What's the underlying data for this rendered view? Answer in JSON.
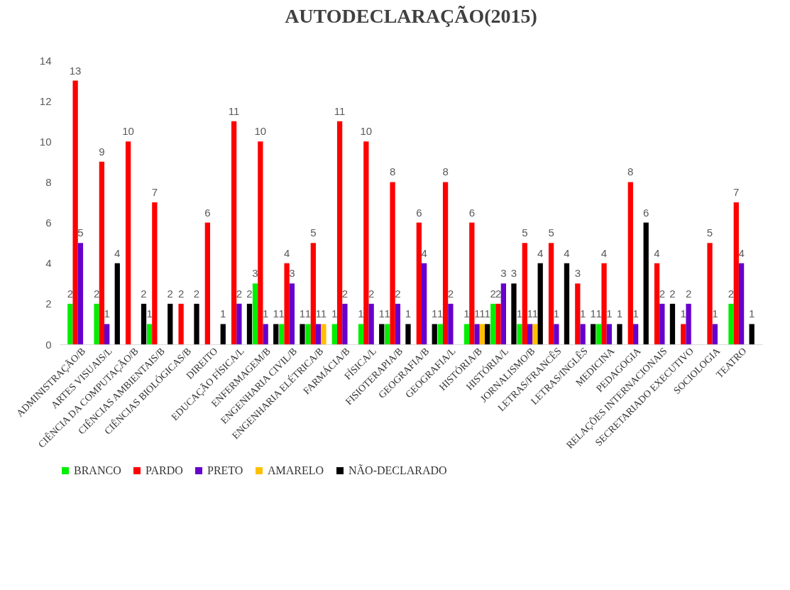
{
  "chart_data": {
    "type": "bar",
    "title": "AUTODECLARAÇÃO(2015)",
    "categories": [
      "ADMINISTRAÇÃO/B",
      "ARTES VISUAIS/L",
      "CIÊNCIA DA COMPUTAÇÃO/B",
      "CIÊNCIAS AMBIENTAIS/B",
      "CIÊNCIAS BIOLÓGICAS/B",
      "DIREITO",
      "EDUCAÇÃO FÍSICA/L",
      "ENFERMAGEM/B",
      "ENGENHARIA CIVIL/B",
      "ENGENHARIA ELÉTRICA/B",
      "FARMÁCIA/B",
      "FÍSICA/L",
      "FISIOTERAPIA/B",
      "GEOGRAFIA/B",
      "GEOGRAFIA/L",
      "HISTÓRIA/B",
      "HISTÓRIA/L",
      "JORNALISMO/B",
      "LETRAS/FRANCÊS",
      "LETRAS/INGLÊS",
      "MEDICINA",
      "PEDAGOGIA",
      "RELAÇÕES INTERNACIONAIS",
      "SECRETARIADO EXECUTIVO",
      "SOCIOLOGIA",
      "TEATRO"
    ],
    "series": [
      {
        "name": "BRANCO",
        "color": "#00ee00",
        "values": [
          2,
          2,
          null,
          1,
          null,
          null,
          null,
          3,
          1,
          1,
          1,
          1,
          1,
          null,
          1,
          1,
          2,
          1,
          null,
          null,
          1,
          null,
          null,
          null,
          null,
          2
        ]
      },
      {
        "name": "PARDO",
        "color": "#ff0000",
        "values": [
          13,
          9,
          10,
          7,
          2,
          6,
          11,
          10,
          4,
          5,
          11,
          10,
          8,
          6,
          8,
          6,
          2,
          5,
          5,
          3,
          4,
          8,
          4,
          1,
          5,
          7
        ]
      },
      {
        "name": "PRETO",
        "color": "#6600cc",
        "values": [
          5,
          1,
          null,
          null,
          null,
          null,
          2,
          1,
          3,
          1,
          2,
          2,
          2,
          4,
          2,
          1,
          3,
          1,
          1,
          1,
          1,
          1,
          2,
          2,
          1,
          4
        ]
      },
      {
        "name": "AMARELO",
        "color": "#ffc000",
        "values": [
          null,
          null,
          null,
          null,
          null,
          null,
          null,
          null,
          null,
          1,
          null,
          null,
          null,
          null,
          null,
          1,
          null,
          1,
          null,
          null,
          null,
          null,
          null,
          null,
          null,
          null
        ]
      },
      {
        "name": "NÃO-DECLARADO",
        "color": "#000000",
        "values": [
          null,
          4,
          2,
          2,
          2,
          1,
          2,
          1,
          1,
          null,
          null,
          1,
          1,
          1,
          null,
          1,
          3,
          4,
          4,
          1,
          1,
          6,
          2,
          null,
          null,
          1
        ]
      }
    ],
    "ylim": [
      0,
      14
    ],
    "yticks": [
      0,
      2,
      4,
      6,
      8,
      10,
      12,
      14
    ],
    "grid": false,
    "legend": "bottom",
    "data_labels": true
  }
}
